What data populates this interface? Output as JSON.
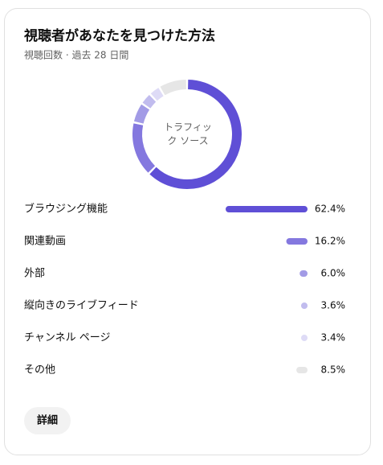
{
  "chart_data": {
    "type": "donut",
    "title": "視聴者があなたを見つけた方法",
    "subtitle": "視聴回数 · 過去 28 日間",
    "center_label": "トラフィック ソース",
    "categories": [
      "ブラウジング機能",
      "関連動画",
      "外部",
      "縦向きのライブフィード",
      "チャンネル ページ",
      "その他"
    ],
    "values": [
      62.4,
      16.2,
      6.0,
      3.6,
      3.4,
      8.5
    ],
    "value_labels": [
      "62.4%",
      "16.2%",
      "6.0%",
      "3.6%",
      "3.4%",
      "8.5%"
    ],
    "colors": [
      "#5f4fd6",
      "#8478df",
      "#a29be6",
      "#c1bcee",
      "#dedbf6",
      "#e6e6e6"
    ]
  },
  "actions": {
    "details": "詳細"
  }
}
